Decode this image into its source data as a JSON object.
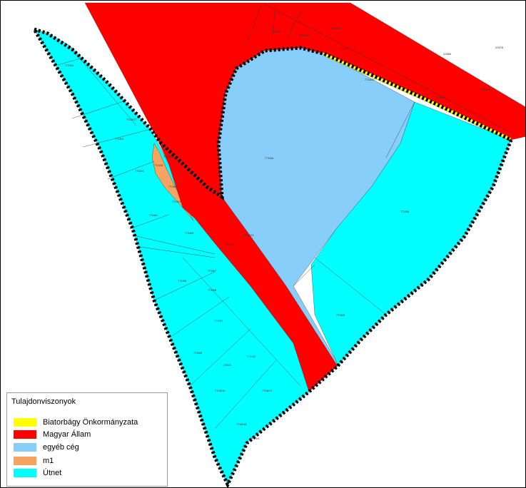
{
  "legend": {
    "title": "Tulajdonviszonyok",
    "items": [
      {
        "label": "Biatorbágy Önkormányzata",
        "color": "#ffff00"
      },
      {
        "label": "Magyar Állam",
        "color": "#ff0000"
      },
      {
        "label": "egyéb cég",
        "color": "#87cefa"
      },
      {
        "label": "m1",
        "color": "#f4a460"
      },
      {
        "label": "Útnet",
        "color": "#00ffff"
      }
    ]
  },
  "parcel_labels": [
    "7715/4",
    "7715/1",
    "7716/4",
    "7716/3",
    "7716/2",
    "7716/1",
    "7716/5",
    "7716/6",
    "7715/8",
    "7715/9",
    "7716/7",
    "7719/8",
    "7719/6",
    "7719/1",
    "7719/2",
    "7716/5",
    "22680",
    "22678",
    "23003",
    "7718/16",
    "7718/17",
    "7716/18",
    "7714/4",
    "7714/2",
    "7718/19",
    "7714/12",
    "7716/1",
    "7716/20",
    "7716/2",
    "7718/21",
    "7718/23",
    "7718/25",
    "7718/27",
    "7718/28",
    "7719/1"
  ]
}
